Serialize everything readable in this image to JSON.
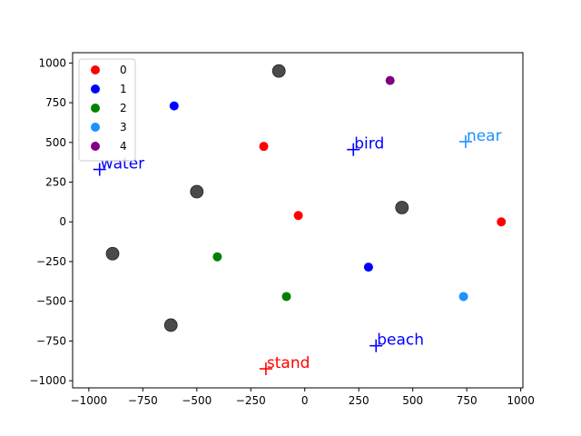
{
  "chart_data": {
    "type": "scatter",
    "xlim": [
      -1075,
      1010
    ],
    "ylim": [
      -1045,
      1065
    ],
    "x_ticks": [
      -1000,
      -750,
      -500,
      -250,
      0,
      250,
      500,
      750,
      1000
    ],
    "y_ticks": [
      -1000,
      -750,
      -500,
      -250,
      0,
      250,
      500,
      750,
      1000
    ],
    "x_tick_labels": [
      "−1000",
      "−750",
      "−500",
      "−250",
      "0",
      "250",
      "500",
      "750",
      "1000"
    ],
    "y_tick_labels": [
      "−1000",
      "−750",
      "−500",
      "−250",
      "0",
      "250",
      "500",
      "750",
      "1000"
    ],
    "grid": false,
    "legend_placement": "top-left",
    "series": [
      {
        "name": "0",
        "color": "#ff0000",
        "points": [
          [
            -190,
            475
          ],
          [
            -30,
            40
          ],
          [
            910,
            0
          ]
        ]
      },
      {
        "name": "1",
        "color": "#0000ff",
        "points": [
          [
            -605,
            730
          ],
          [
            295,
            -285
          ]
        ]
      },
      {
        "name": "2",
        "color": "#008000",
        "points": [
          [
            -405,
            -220
          ],
          [
            -85,
            -470
          ]
        ]
      },
      {
        "name": "3",
        "color": "#1e90ff",
        "points": [
          [
            735,
            -470
          ]
        ]
      },
      {
        "name": "4",
        "color": "#800080",
        "points": [
          [
            395,
            890
          ]
        ]
      }
    ],
    "gray_points": {
      "color": "#404040",
      "points": [
        [
          -120,
          950
        ],
        [
          -500,
          190
        ],
        [
          450,
          90
        ],
        [
          -890,
          -200
        ],
        [
          -620,
          -650
        ]
      ]
    },
    "word_markers": [
      {
        "word": "water",
        "x": -950,
        "y": 330,
        "color": "#0000ff"
      },
      {
        "word": "bird",
        "x": 225,
        "y": 455,
        "color": "#0000ff"
      },
      {
        "word": "near",
        "x": 745,
        "y": 505,
        "color": "#1e90ff"
      },
      {
        "word": "beach",
        "x": 330,
        "y": -780,
        "color": "#0000ff"
      },
      {
        "word": "stand",
        "x": -180,
        "y": -925,
        "color": "#ff0000"
      }
    ]
  }
}
